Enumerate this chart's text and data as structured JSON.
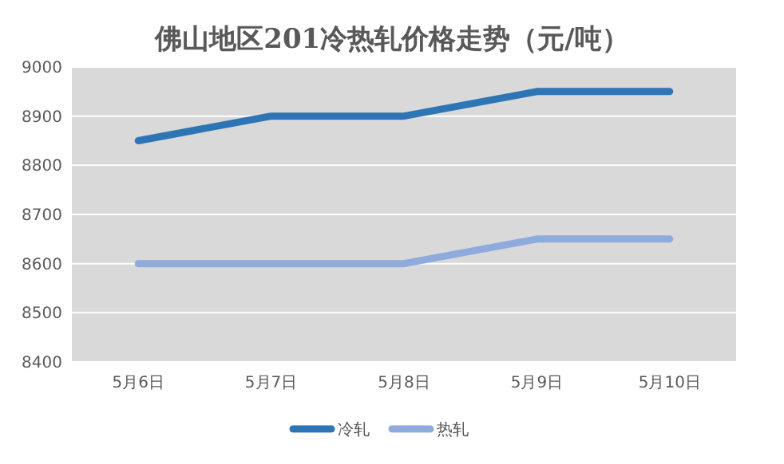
{
  "chart_data": {
    "type": "line",
    "title": "佛山地区201冷热轧价格走势（元/吨）",
    "categories": [
      "5月6日",
      "5月7日",
      "5月8日",
      "5月9日",
      "5月10日"
    ],
    "series": [
      {
        "name": "冷轧",
        "color": "#2e75b6",
        "values": [
          8850,
          8900,
          8900,
          8950,
          8950
        ]
      },
      {
        "name": "热轧",
        "color": "#8faadc",
        "values": [
          8600,
          8600,
          8600,
          8650,
          8650
        ]
      }
    ],
    "ylim": [
      8400,
      9000
    ],
    "yticks": [
      8400,
      8500,
      8600,
      8700,
      8800,
      8900,
      9000
    ],
    "grid": "y",
    "legend": "bottom",
    "marker": "none",
    "line_style": "solid"
  }
}
